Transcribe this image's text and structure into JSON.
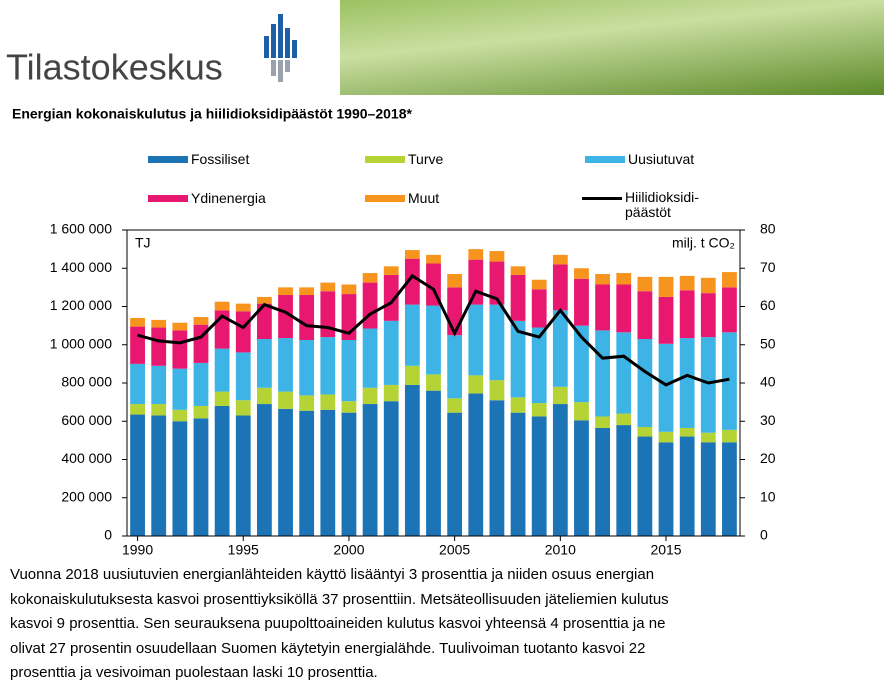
{
  "header": {
    "logo": "Tilastokeskus"
  },
  "chart_data": {
    "type": "bar",
    "title": "Energian kokonaiskulutus ja hiilidioksidipäästöt 1990–2018*",
    "y_label": "TJ",
    "y2_label": "milj. t CO₂",
    "x": [
      1990,
      1991,
      1992,
      1993,
      1994,
      1995,
      1996,
      1997,
      1998,
      1999,
      2000,
      2001,
      2002,
      2003,
      2004,
      2005,
      2006,
      2007,
      2008,
      2009,
      2010,
      2011,
      2012,
      2013,
      2014,
      2015,
      2016,
      2017,
      2018
    ],
    "xlim": [
      1989.5,
      2018.5
    ],
    "xticks": [
      1990,
      1995,
      2000,
      2005,
      2010,
      2015
    ],
    "ylim": [
      0,
      1600000
    ],
    "yticks": [
      0,
      {
        "value": 200000,
        "label": "200 000"
      },
      {
        "value": 400000,
        "label": "400 000"
      },
      {
        "value": 600000,
        "label": "600 000"
      },
      {
        "value": 800000,
        "label": "800 000"
      },
      {
        "value": 1000000,
        "label": "1 000 000"
      },
      {
        "value": 1200000,
        "label": "1 200 000"
      },
      {
        "value": 1400000,
        "label": "1 400 000"
      },
      {
        "value": 1600000,
        "label": "1 600 000"
      }
    ],
    "y2lim": [
      0,
      80
    ],
    "y2ticks": [
      0,
      10,
      20,
      30,
      40,
      50,
      60,
      70,
      80
    ],
    "stacked": true,
    "series": [
      {
        "name": "Fossiliset",
        "color": "#1c74b6",
        "values": [
          635000,
          630000,
          600000,
          615000,
          680000,
          630000,
          690000,
          665000,
          655000,
          660000,
          645000,
          690000,
          705000,
          790000,
          760000,
          645000,
          745000,
          710000,
          645000,
          625000,
          690000,
          605000,
          565000,
          580000,
          520000,
          490000,
          520000,
          490000,
          490000
        ]
      },
      {
        "name": "Turve",
        "color": "#b5d334",
        "values": [
          55000,
          60000,
          60000,
          65000,
          75000,
          80000,
          85000,
          90000,
          80000,
          80000,
          60000,
          85000,
          85000,
          100000,
          85000,
          75000,
          95000,
          105000,
          80000,
          70000,
          90000,
          95000,
          60000,
          60000,
          50000,
          55000,
          45000,
          50000,
          65000
        ]
      },
      {
        "name": "Uusiutuvat",
        "color": "#3db3e6",
        "values": [
          210000,
          200000,
          215000,
          225000,
          225000,
          250000,
          255000,
          280000,
          290000,
          300000,
          320000,
          310000,
          335000,
          320000,
          360000,
          330000,
          370000,
          395000,
          400000,
          395000,
          400000,
          400000,
          450000,
          425000,
          460000,
          460000,
          470000,
          500000,
          510000
        ]
      },
      {
        "name": "Ydinenergia",
        "color": "#e8176f",
        "values": [
          195000,
          200000,
          200000,
          200000,
          200000,
          215000,
          185000,
          225000,
          235000,
          240000,
          240000,
          240000,
          240000,
          240000,
          220000,
          250000,
          235000,
          225000,
          240000,
          200000,
          240000,
          245000,
          240000,
          250000,
          250000,
          245000,
          250000,
          230000,
          235000
        ]
      },
      {
        "name": "Muut",
        "color": "#f7941d",
        "values": [
          45000,
          40000,
          40000,
          40000,
          45000,
          40000,
          35000,
          40000,
          40000,
          45000,
          50000,
          50000,
          45000,
          45000,
          45000,
          70000,
          55000,
          55000,
          45000,
          50000,
          50000,
          55000,
          55000,
          60000,
          75000,
          105000,
          75000,
          80000,
          80000
        ]
      },
      {
        "name": "Hiilidioksidi-päästöt",
        "color": "#000000",
        "type": "line",
        "axis": "y2",
        "values": [
          52.5,
          51,
          50.5,
          52,
          57.5,
          54.5,
          60.5,
          58.5,
          55,
          54.5,
          53,
          58,
          61,
          68,
          64.5,
          53,
          64,
          62,
          53.5,
          52,
          59,
          52,
          46.5,
          47,
          43,
          39.5,
          42,
          40,
          41
        ]
      }
    ]
  },
  "caption": {
    "lines": [
      "Vuonna 2018 uusiutuvien energianlähteiden käyttö lisääntyi 3 prosenttia ja niiden osuus energian",
      "kokonaiskulutuksesta kasvoi prosenttiyksiköllä 37 prosenttiin. Metsäteollisuuden jäteliemien kulutus",
      "kasvoi 9 prosenttia. Sen seurauksena puupolttoaineiden kulutus kasvoi yhteensä 4 prosenttia ja ne",
      "olivat 27 prosentin osuudellaan Suomen käytetyin energialähde. Tuulivoiman tuotanto kasvoi 22",
      "prosenttia ja vesivoiman puolestaan laski 10 prosenttia."
    ]
  }
}
